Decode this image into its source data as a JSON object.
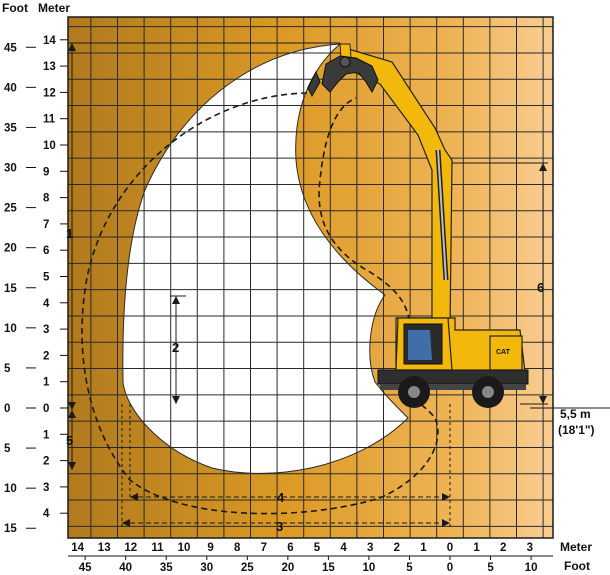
{
  "axes": {
    "foot_label": "Foot",
    "meter_label": "Meter",
    "y_meter_ticks": [
      "14",
      "13",
      "12",
      "11",
      "10",
      "9",
      "8",
      "7",
      "6",
      "5",
      "4",
      "3",
      "2",
      "1",
      "0",
      "1",
      "2",
      "3",
      "4"
    ],
    "y_foot_ticks": [
      "45",
      "40",
      "35",
      "30",
      "25",
      "20",
      "15",
      "10",
      "5",
      "0",
      "5",
      "10",
      "15"
    ],
    "x_meter_ticks": [
      "14",
      "13",
      "12",
      "11",
      "10",
      "9",
      "8",
      "7",
      "6",
      "5",
      "4",
      "3",
      "2",
      "1",
      "0",
      "1",
      "2",
      "3"
    ],
    "x_foot_ticks": [
      "45",
      "40",
      "35",
      "30",
      "25",
      "20",
      "15",
      "10",
      "5",
      "0",
      "5",
      "10"
    ]
  },
  "callouts": {
    "c1": "1",
    "c2": "2",
    "c3": "3",
    "c4": "4",
    "c5": "5",
    "c6": "6"
  },
  "reach": {
    "value": "5,5 m",
    "imperial": "(18'1\")"
  },
  "colors": {
    "gradient_left": "#b07a1e",
    "gradient_mid": "#e1a12a",
    "gradient_right": "#f6c88a",
    "grid": "#2a2a2a",
    "envelope": "#ffffff",
    "machine": "#f2b80c"
  },
  "machine": {
    "badge": "CAT"
  }
}
